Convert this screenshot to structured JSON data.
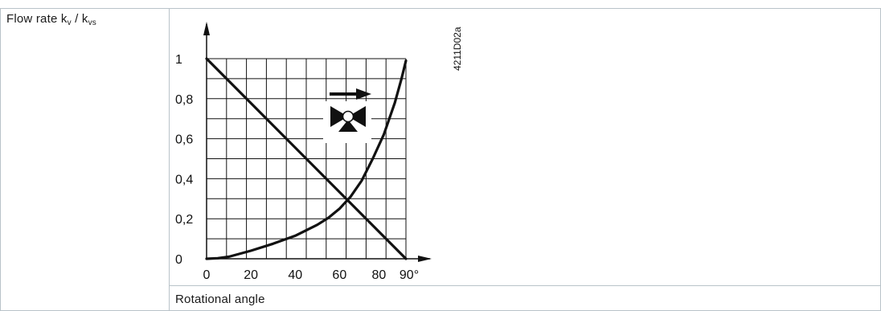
{
  "row_label": {
    "text": "Flow rate k",
    "sub1": "v",
    "sep": " / k",
    "sub2": "vs"
  },
  "caption": "Rotational angle",
  "figure_code": "4211D02a",
  "chart_data": {
    "type": "line",
    "xlabel": "Rotational angle",
    "ylabel": "Flow rate kv / kvs",
    "xlim": [
      0,
      90
    ],
    "ylim": [
      0,
      1
    ],
    "x_ticks": [
      "0",
      "20",
      "40",
      "60",
      "80",
      "90°"
    ],
    "x_tick_values": [
      0,
      20,
      40,
      60,
      80,
      90
    ],
    "y_ticks": [
      "0",
      "0,2",
      "0,4",
      "0,6",
      "0,8",
      "1"
    ],
    "y_tick_values": [
      0,
      0.2,
      0.4,
      0.6,
      0.8,
      1
    ],
    "grid": true,
    "series": [
      {
        "x": [
          0,
          90
        ],
        "y": [
          1,
          0
        ]
      },
      {
        "x": [
          0,
          5,
          10,
          20,
          30,
          40,
          50,
          55,
          60,
          65,
          70,
          75,
          80,
          85,
          88,
          90
        ],
        "y": [
          0,
          0.003,
          0.01,
          0.04,
          0.075,
          0.115,
          0.17,
          0.205,
          0.25,
          0.31,
          0.39,
          0.5,
          0.62,
          0.78,
          0.9,
          0.99
        ]
      }
    ],
    "symbol": "valve-icon"
  }
}
